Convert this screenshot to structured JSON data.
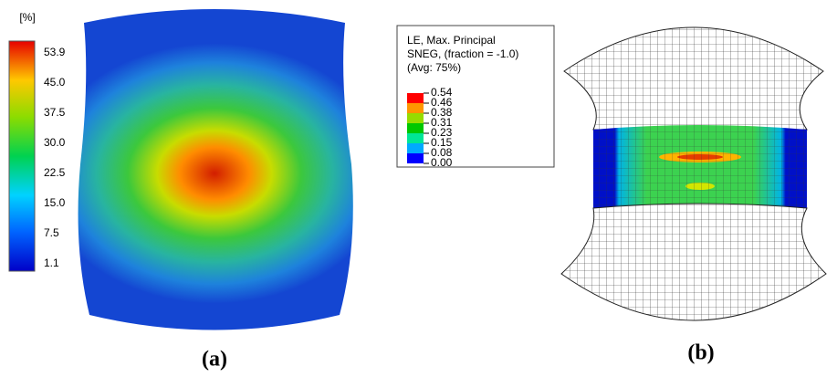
{
  "panel_a": {
    "unit": "[%]",
    "colorbar_labels": [
      "53.9",
      "45.0",
      "37.5",
      "30.0",
      "22.5",
      "15.0",
      "7.5",
      "1.1"
    ],
    "caption": "(a)"
  },
  "panel_b": {
    "legend_title": [
      "LE, Max. Principal",
      "SNEG, (fraction = -1.0)",
      "(Avg: 75%)"
    ],
    "legend_labels": [
      "0.54",
      "0.46",
      "0.38",
      "0.31",
      "0.23",
      "0.15",
      "0.08",
      "0.00"
    ],
    "caption": "(b)"
  }
}
